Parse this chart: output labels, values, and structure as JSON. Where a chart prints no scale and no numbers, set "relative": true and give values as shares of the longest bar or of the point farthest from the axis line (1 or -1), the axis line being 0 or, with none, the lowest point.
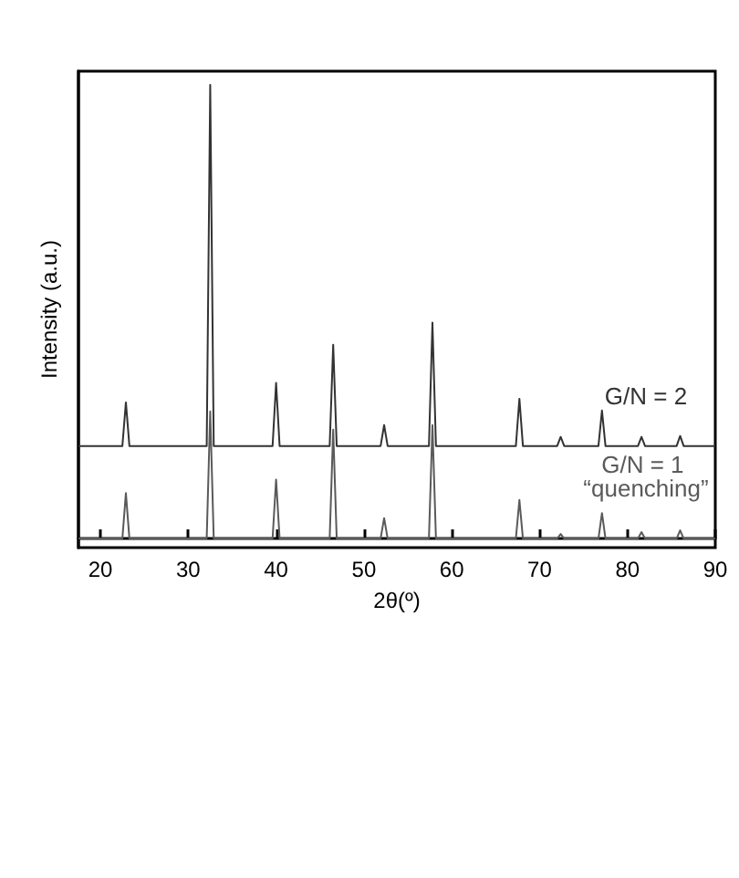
{
  "chart_data": {
    "type": "line",
    "relative": true,
    "xlabel": "2θ(º)",
    "ylabel": "Intensity (a.u.)",
    "xlim": [
      17.5,
      90
    ],
    "xticks": [
      20,
      30,
      40,
      50,
      60,
      70,
      80,
      90
    ],
    "grid": false,
    "legend": false,
    "marker": "none",
    "line_style": "solid",
    "series": [
      {
        "name": "G/N = 2",
        "color": "#333333",
        "x": [
          17.5,
          22.5,
          22.9,
          23.3,
          32.1,
          32.5,
          32.9,
          39.6,
          40.0,
          40.4,
          46.1,
          46.5,
          46.9,
          51.9,
          52.3,
          52.7,
          57.4,
          57.8,
          58.2,
          67.3,
          67.7,
          68.1,
          72.0,
          72.4,
          72.8,
          76.7,
          77.1,
          77.5,
          81.2,
          81.6,
          82.0,
          85.6,
          86.0,
          86.4,
          90
        ],
        "values": [
          0.204,
          0.204,
          0.3,
          0.204,
          0.204,
          1.0,
          0.204,
          0.204,
          0.343,
          0.204,
          0.204,
          0.427,
          0.204,
          0.204,
          0.25,
          0.204,
          0.204,
          0.476,
          0.204,
          0.204,
          0.308,
          0.204,
          0.204,
          0.224,
          0.204,
          0.204,
          0.282,
          0.204,
          0.204,
          0.224,
          0.204,
          0.204,
          0.226,
          0.204,
          0.204
        ]
      },
      {
        "name": "G/N = 1 “quenching”",
        "color": "#5a5a5a",
        "x": [
          17.5,
          22.5,
          22.9,
          23.3,
          32.1,
          32.5,
          32.9,
          39.6,
          40.0,
          40.4,
          46.1,
          46.5,
          46.9,
          51.9,
          52.3,
          52.7,
          57.4,
          57.8,
          58.2,
          67.3,
          67.7,
          68.1,
          72.0,
          72.4,
          72.8,
          76.7,
          77.1,
          77.5,
          81.2,
          81.6,
          82.0,
          85.6,
          86.0,
          86.4,
          90
        ],
        "values": [
          0,
          0,
          0.1,
          0,
          0,
          0.28,
          0,
          0,
          0.13,
          0,
          0,
          0.24,
          0,
          0,
          0.045,
          0,
          0,
          0.25,
          0,
          0,
          0.085,
          0,
          0,
          0.01,
          0,
          0,
          0.056,
          0,
          0,
          0.014,
          0,
          0,
          0.018,
          0,
          0
        ]
      }
    ]
  }
}
